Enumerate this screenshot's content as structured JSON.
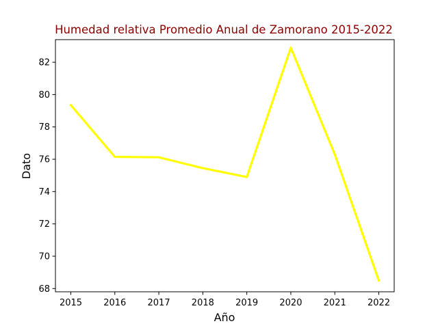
{
  "chart_data": {
    "type": "line",
    "title": "Humedad relativa Promedio Anual de Zamorano 2015-2022",
    "xlabel": "Año",
    "ylabel": "Dato",
    "x": [
      2015,
      2016,
      2017,
      2018,
      2019,
      2020,
      2021,
      2022
    ],
    "series": [
      {
        "values": [
          79.35,
          76.15,
          76.12,
          75.45,
          74.9,
          82.9,
          76.3,
          68.5
        ]
      }
    ],
    "xticks": [
      "2015",
      "2016",
      "2017",
      "2018",
      "2019",
      "2020",
      "2021",
      "2022"
    ],
    "yticks": [
      "68",
      "70",
      "72",
      "74",
      "76",
      "78",
      "80",
      "82"
    ],
    "ylim": [
      67.8,
      83.4
    ],
    "xlim": [
      2014.65,
      2022.35
    ],
    "grid": false,
    "colors": {
      "line": "#ffff00",
      "title": "#8b0000",
      "axes": "#000000"
    }
  }
}
